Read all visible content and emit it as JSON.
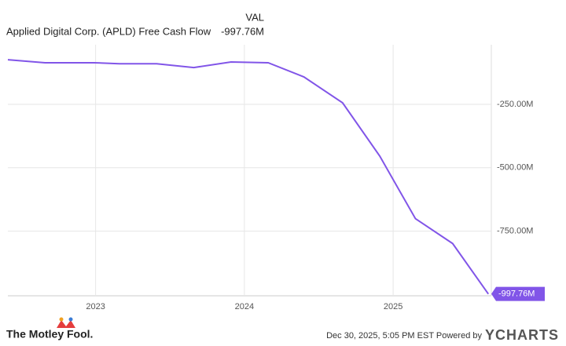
{
  "chart_data": {
    "type": "line",
    "legend_header": "VAL",
    "x": [
      2022.41,
      2022.66,
      2022.99,
      2023.16,
      2023.41,
      2023.66,
      2023.91,
      2024.16,
      2024.4,
      2024.66,
      2024.91,
      2025.15,
      2025.4,
      2025.64
    ],
    "series": [
      {
        "name": "Applied Digital Corp. (APLD) Free Cash Flow",
        "color": "#8155e8",
        "values": [
          -74,
          -86,
          -86,
          -90,
          -90,
          -105,
          -83,
          -86,
          -142,
          -244,
          -454,
          -701,
          -799,
          -997.76
        ],
        "value_labels": [
          null,
          null,
          null,
          null,
          null,
          null,
          null,
          null,
          null,
          null,
          null,
          null,
          null,
          "-997.76M"
        ]
      }
    ],
    "xlim": [
      2022.41,
      2025.66
    ],
    "xticks": [
      2023,
      2024,
      2025
    ],
    "ylim": [
      -1005,
      -15
    ],
    "yticks": [
      {
        "value": -250,
        "label": "-250.00M"
      },
      {
        "value": -500,
        "label": "-500.00M"
      },
      {
        "value": -750,
        "label": "-750.00M"
      }
    ],
    "grid": true
  },
  "footer": {
    "brand": "The Motley Fool.",
    "timestamp": "Dec 30, 2025, 5:05 PM EST  Powered by",
    "provider": "YCHARTS"
  }
}
